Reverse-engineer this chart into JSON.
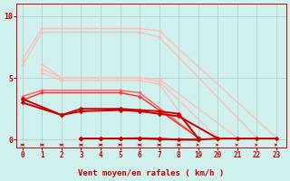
{
  "bg_color": "#cff0ec",
  "grid_color": "#b0d8d4",
  "line_color_dark": "#cc0000",
  "xlabel": "Vent moyen/en rafales ( km/h )",
  "ylabel_ticks": [
    0,
    5,
    10
  ],
  "ytick_labels": [
    "0",
    "5",
    "10"
  ],
  "xtick_labels": [
    "0",
    "1",
    "2",
    "3",
    "4",
    "5",
    "6",
    "7",
    "8",
    "19",
    "20",
    "21",
    "22",
    "23"
  ],
  "xtick_pos": [
    0,
    1,
    2,
    3,
    4,
    5,
    6,
    7,
    8,
    9,
    10,
    11,
    12,
    13
  ],
  "xlim": [
    -0.3,
    13.5
  ],
  "ylim": [
    -0.6,
    11.0
  ],
  "series": [
    {
      "x": [
        0,
        1,
        6,
        7,
        13
      ],
      "y": [
        6.5,
        9.0,
        9.0,
        8.8,
        0.15
      ],
      "color": "#ffbbbb",
      "lw": 0.9,
      "ms": 2.0
    },
    {
      "x": [
        0,
        1,
        6,
        7,
        12
      ],
      "y": [
        6.0,
        8.7,
        8.7,
        8.3,
        0.15
      ],
      "color": "#ffbbbb",
      "lw": 0.9,
      "ms": 2.0
    },
    {
      "x": [
        1,
        2,
        6,
        7,
        11
      ],
      "y": [
        6.1,
        5.0,
        5.0,
        4.9,
        0.15
      ],
      "color": "#ffbbbb",
      "lw": 0.9,
      "ms": 2.0
    },
    {
      "x": [
        1,
        2,
        6,
        7,
        10
      ],
      "y": [
        5.7,
        5.0,
        5.0,
        4.7,
        0.15
      ],
      "color": "#ffbbbb",
      "lw": 0.9,
      "ms": 2.0
    },
    {
      "x": [
        1,
        2,
        6,
        7,
        9
      ],
      "y": [
        5.4,
        4.8,
        4.8,
        4.5,
        0.15
      ],
      "color": "#ffbbbb",
      "lw": 0.9,
      "ms": 2.0
    },
    {
      "x": [
        0,
        1,
        5,
        6,
        9
      ],
      "y": [
        3.5,
        4.0,
        4.0,
        3.8,
        0.15
      ],
      "color": "#ff6666",
      "lw": 1.1,
      "ms": 2.0
    },
    {
      "x": [
        0,
        1,
        5,
        6,
        9
      ],
      "y": [
        3.2,
        3.8,
        3.8,
        3.5,
        0.15
      ],
      "color": "#ff3333",
      "lw": 1.1,
      "ms": 2.0
    },
    {
      "x": [
        0,
        2,
        3,
        5,
        6,
        7,
        8,
        9
      ],
      "y": [
        3.3,
        2.0,
        2.5,
        2.5,
        2.4,
        2.3,
        2.1,
        0.1
      ],
      "color": "#cc0000",
      "lw": 1.4,
      "ms": 2.5
    },
    {
      "x": [
        0,
        2,
        3,
        5,
        6,
        7,
        8,
        10
      ],
      "y": [
        3.0,
        2.0,
        2.3,
        2.4,
        2.3,
        2.1,
        1.9,
        0.1
      ],
      "color": "#cc0000",
      "lw": 1.4,
      "ms": 2.5
    },
    {
      "x": [
        3,
        4,
        5,
        6,
        7,
        9
      ],
      "y": [
        0.1,
        0.1,
        0.1,
        0.1,
        0.05,
        0.0
      ],
      "color": "#cc0000",
      "lw": 1.4,
      "ms": 2.5
    },
    {
      "x": [
        3,
        4,
        5,
        6,
        7,
        8,
        9,
        10,
        11,
        12,
        13
      ],
      "y": [
        0.1,
        0.1,
        0.1,
        0.12,
        0.08,
        0.0,
        0.0,
        0.1,
        0.1,
        0.1,
        0.1
      ],
      "color": "#cc0000",
      "lw": 1.4,
      "ms": 2.5
    }
  ],
  "arrow_positions_left": [
    0,
    1,
    2,
    3,
    4,
    5,
    6,
    7,
    8
  ],
  "arrow_positions_right": [
    9,
    10,
    11,
    12,
    13
  ]
}
